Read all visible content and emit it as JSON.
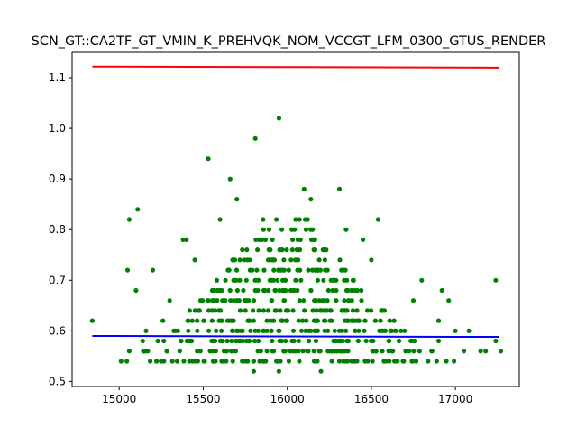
{
  "chart_data": {
    "type": "scatter",
    "title": "SCN_GT::CA2TF_GT_VMIN_K_PREHVQK_NOM_VCCGT_LFM_0300_GTUS_RENDER",
    "xlabel": "",
    "ylabel": "",
    "xlim": [
      14720,
      17380
    ],
    "ylim": [
      0.49,
      1.15
    ],
    "xticks": [
      15000,
      15500,
      16000,
      16500,
      17000
    ],
    "xtick_labels": [
      "15000",
      "15500",
      "16000",
      "16500",
      "17000"
    ],
    "yticks": [
      0.5,
      0.6,
      0.7,
      0.8,
      0.9,
      1.0,
      1.1
    ],
    "ytick_labels": [
      "0.5",
      "0.6",
      "0.7",
      "0.8",
      "0.9",
      "1.0",
      "1.1"
    ],
    "grid": false,
    "colors": {
      "points": "#008000",
      "upper_line": "#ff0000",
      "lower_line": "#0000ff"
    },
    "lines": [
      {
        "x": [
          14840,
          17260
        ],
        "y": [
          1.122,
          1.12
        ]
      },
      {
        "x": [
          14840,
          17260
        ],
        "y": [
          0.59,
          0.588
        ]
      }
    ],
    "dense": {
      "x_range": [
        15000,
        17000
      ],
      "y_levels": [
        0.54,
        0.56,
        0.58,
        0.6,
        0.62,
        0.64,
        0.66,
        0.68,
        0.7,
        0.72,
        0.74,
        0.76,
        0.78,
        0.8,
        0.82
      ],
      "center": 16000
    },
    "points": [
      [
        14840,
        0.62
      ],
      [
        15050,
        0.72
      ],
      [
        15060,
        0.82
      ],
      [
        15100,
        0.68
      ],
      [
        15110,
        0.84
      ],
      [
        15200,
        0.72
      ],
      [
        15380,
        0.78
      ],
      [
        15400,
        0.78
      ],
      [
        15530,
        0.94
      ],
      [
        15660,
        0.9
      ],
      [
        15700,
        0.86
      ],
      [
        15810,
        0.98
      ],
      [
        15950,
        1.02
      ],
      [
        16100,
        0.88
      ],
      [
        16140,
        0.86
      ],
      [
        16310,
        0.88
      ],
      [
        16540,
        0.82
      ],
      [
        16800,
        0.7
      ],
      [
        16920,
        0.68
      ],
      [
        16960,
        0.66
      ],
      [
        17000,
        0.6
      ],
      [
        17080,
        0.6
      ],
      [
        17150,
        0.56
      ],
      [
        17180,
        0.56
      ],
      [
        17240,
        0.7
      ],
      [
        17240,
        0.58
      ],
      [
        17270,
        0.56
      ],
      [
        16200,
        0.52
      ],
      [
        15800,
        0.52
      ],
      [
        15950,
        0.52
      ],
      [
        15060,
        0.56
      ],
      [
        15140,
        0.58
      ],
      [
        15160,
        0.6
      ],
      [
        15260,
        0.62
      ],
      [
        15300,
        0.66
      ],
      [
        16750,
        0.66
      ],
      [
        16900,
        0.62
      ],
      [
        17050,
        0.56
      ],
      [
        15450,
        0.74
      ],
      [
        16450,
        0.78
      ],
      [
        15600,
        0.82
      ],
      [
        16350,
        0.8
      ],
      [
        16500,
        0.74
      ],
      [
        15250,
        0.54
      ],
      [
        16900,
        0.58
      ]
    ]
  }
}
